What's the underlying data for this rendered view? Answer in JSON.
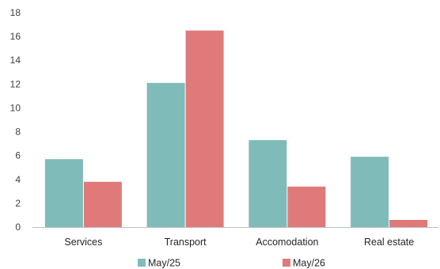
{
  "chart_data": {
    "type": "bar",
    "categories": [
      "Services",
      "Transport",
      "Accomodation",
      "Real estate"
    ],
    "series": [
      {
        "name": "May/25",
        "values": [
          5.7,
          12.1,
          7.3,
          5.9
        ],
        "color": "#7fbbb9"
      },
      {
        "name": "May/26",
        "values": [
          3.8,
          16.5,
          3.4,
          0.6
        ],
        "color": "#e07a7a"
      }
    ],
    "yticks": [
      "0",
      "2",
      "4",
      "6",
      "8",
      "10",
      "12",
      "14",
      "16",
      "18"
    ],
    "ylim": [
      0,
      18
    ],
    "grid": false,
    "legend_position": "bottom",
    "axis_color": "#bfbfbf"
  }
}
